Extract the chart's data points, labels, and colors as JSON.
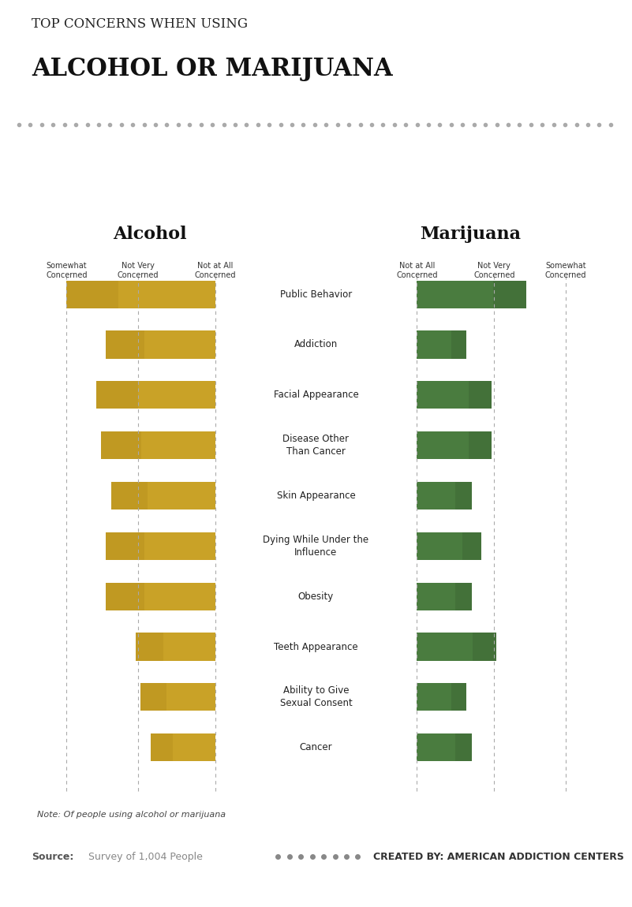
{
  "title_top": "TOP CONCERNS WHEN USING",
  "title_main": "ALCOHOL OR MARIJUANA",
  "bg_color": "#f2f2f2",
  "white_bg": "#ffffff",
  "chart_bg": "#eeeeee",
  "categories": [
    "Public Behavior",
    "Addiction",
    "Facial Appearance",
    "Disease Other\nThan Cancer",
    "Skin Appearance",
    "Dying While Under the\nInfluence",
    "Obesity",
    "Teeth Appearance",
    "Ability to Give\nSexual Consent",
    "Cancer"
  ],
  "alcohol_values": [
    3.0,
    2.2,
    2.4,
    2.3,
    2.1,
    2.2,
    2.2,
    1.6,
    1.5,
    1.3
  ],
  "marijuana_values": [
    2.2,
    1.0,
    1.5,
    1.5,
    1.1,
    1.3,
    1.1,
    1.6,
    1.0,
    1.1
  ],
  "alcohol_col_labels": [
    "Somewhat\nConcerned",
    "Not Very\nConcerned",
    "Not at All\nConcerned"
  ],
  "marijuana_col_labels": [
    "Not at All\nConcerned",
    "Not Very\nConcerned",
    "Somewhat\nConcerned"
  ],
  "alcohol_color": "#c9a227",
  "marijuana_color": "#4a7c3f",
  "note": "Note: Of people using alcohol or marijuana",
  "source": "Source:",
  "source_detail": "Survey of 1,004 People",
  "credit": "CREATED BY: AMERICAN ADDICTION CENTERS"
}
